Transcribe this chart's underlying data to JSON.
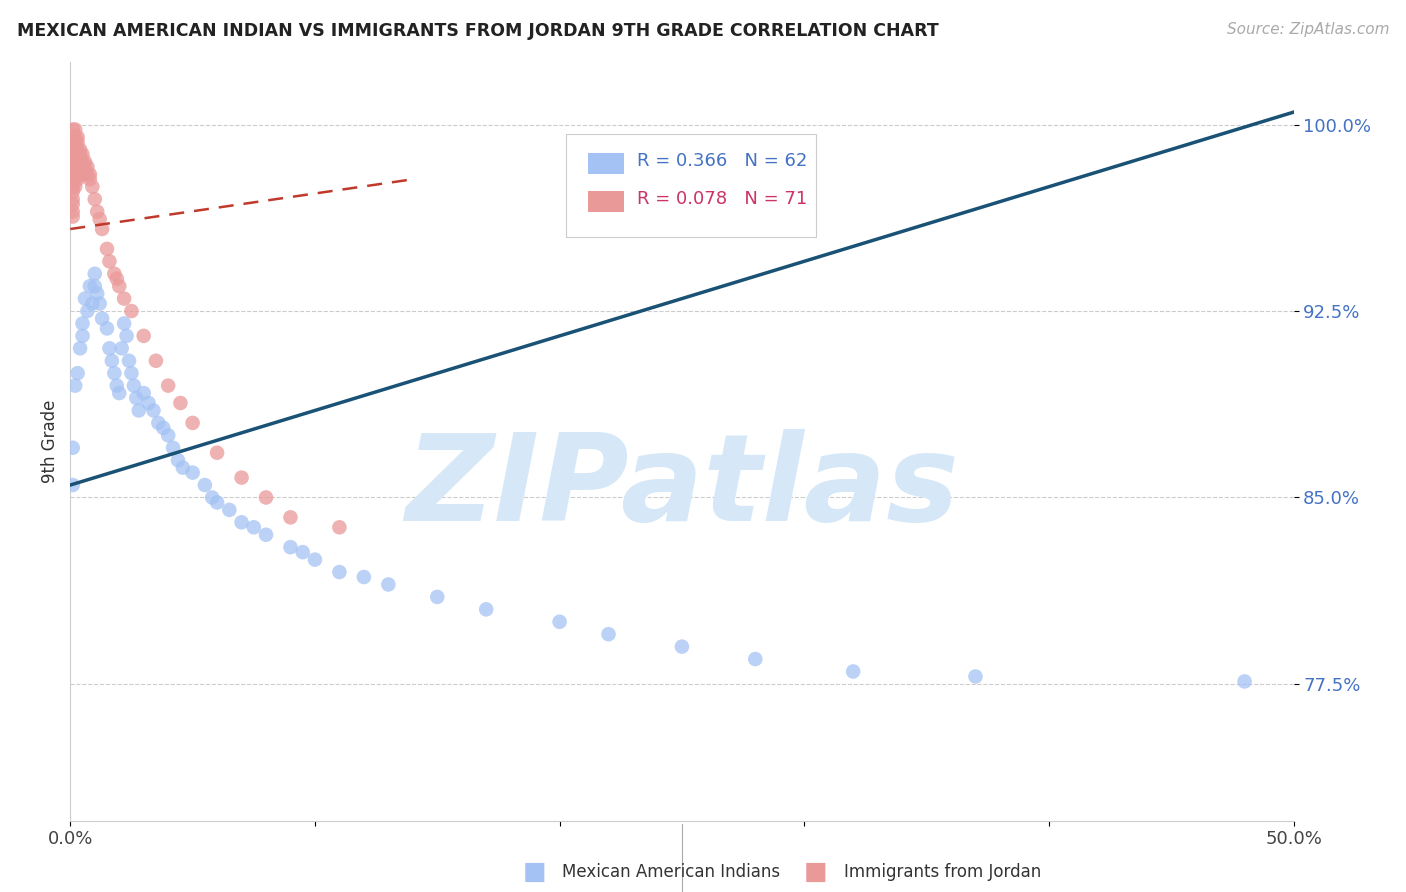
{
  "title": "MEXICAN AMERICAN INDIAN VS IMMIGRANTS FROM JORDAN 9TH GRADE CORRELATION CHART",
  "source": "Source: ZipAtlas.com",
  "ylabel": "9th Grade",
  "yticks": [
    0.775,
    0.85,
    0.925,
    1.0
  ],
  "ytick_labels": [
    "77.5%",
    "85.0%",
    "92.5%",
    "100.0%"
  ],
  "xlim": [
    0.0,
    0.5
  ],
  "ylim": [
    0.72,
    1.025
  ],
  "legend_blue_r": "R = 0.366",
  "legend_blue_n": "N = 62",
  "legend_pink_r": "R = 0.078",
  "legend_pink_n": "N = 71",
  "legend_label_blue": "Mexican American Indians",
  "legend_label_pink": "Immigrants from Jordan",
  "blue_color": "#a4c2f4",
  "blue_line_color": "#1a5276",
  "pink_color": "#ea9999",
  "pink_line_color": "#c0392b",
  "watermark": "ZIPatlas",
  "watermark_color": "#d6e8f7",
  "blue_dots_x": [
    0.001,
    0.001,
    0.002,
    0.003,
    0.004,
    0.005,
    0.005,
    0.006,
    0.007,
    0.008,
    0.009,
    0.01,
    0.01,
    0.011,
    0.012,
    0.013,
    0.015,
    0.016,
    0.017,
    0.018,
    0.019,
    0.02,
    0.021,
    0.022,
    0.023,
    0.024,
    0.025,
    0.026,
    0.027,
    0.028,
    0.03,
    0.032,
    0.034,
    0.036,
    0.038,
    0.04,
    0.042,
    0.044,
    0.046,
    0.05,
    0.055,
    0.058,
    0.06,
    0.065,
    0.07,
    0.075,
    0.08,
    0.09,
    0.095,
    0.1,
    0.11,
    0.12,
    0.13,
    0.15,
    0.17,
    0.2,
    0.22,
    0.25,
    0.28,
    0.32,
    0.37,
    0.48
  ],
  "blue_dots_y": [
    0.87,
    0.855,
    0.895,
    0.9,
    0.91,
    0.92,
    0.915,
    0.93,
    0.925,
    0.935,
    0.928,
    0.94,
    0.935,
    0.932,
    0.928,
    0.922,
    0.918,
    0.91,
    0.905,
    0.9,
    0.895,
    0.892,
    0.91,
    0.92,
    0.915,
    0.905,
    0.9,
    0.895,
    0.89,
    0.885,
    0.892,
    0.888,
    0.885,
    0.88,
    0.878,
    0.875,
    0.87,
    0.865,
    0.862,
    0.86,
    0.855,
    0.85,
    0.848,
    0.845,
    0.84,
    0.838,
    0.835,
    0.83,
    0.828,
    0.825,
    0.82,
    0.818,
    0.815,
    0.81,
    0.805,
    0.8,
    0.795,
    0.79,
    0.785,
    0.78,
    0.778,
    0.776
  ],
  "pink_dots_x": [
    0.001,
    0.001,
    0.001,
    0.001,
    0.001,
    0.001,
    0.001,
    0.001,
    0.001,
    0.001,
    0.001,
    0.001,
    0.001,
    0.001,
    0.001,
    0.002,
    0.002,
    0.002,
    0.002,
    0.002,
    0.002,
    0.002,
    0.002,
    0.002,
    0.002,
    0.003,
    0.003,
    0.003,
    0.003,
    0.003,
    0.003,
    0.003,
    0.003,
    0.004,
    0.004,
    0.004,
    0.004,
    0.004,
    0.005,
    0.005,
    0.005,
    0.005,
    0.006,
    0.006,
    0.006,
    0.007,
    0.007,
    0.008,
    0.008,
    0.009,
    0.01,
    0.011,
    0.012,
    0.013,
    0.015,
    0.016,
    0.018,
    0.019,
    0.02,
    0.022,
    0.025,
    0.03,
    0.035,
    0.04,
    0.045,
    0.05,
    0.06,
    0.07,
    0.08,
    0.09,
    0.11
  ],
  "pink_dots_y": [
    0.998,
    0.995,
    0.993,
    0.99,
    0.988,
    0.985,
    0.983,
    0.98,
    0.978,
    0.975,
    0.973,
    0.97,
    0.968,
    0.965,
    0.963,
    0.998,
    0.995,
    0.993,
    0.99,
    0.988,
    0.985,
    0.983,
    0.98,
    0.978,
    0.975,
    0.995,
    0.993,
    0.99,
    0.988,
    0.985,
    0.983,
    0.98,
    0.978,
    0.99,
    0.988,
    0.985,
    0.983,
    0.98,
    0.988,
    0.985,
    0.983,
    0.98,
    0.985,
    0.983,
    0.98,
    0.983,
    0.98,
    0.98,
    0.978,
    0.975,
    0.97,
    0.965,
    0.962,
    0.958,
    0.95,
    0.945,
    0.94,
    0.938,
    0.935,
    0.93,
    0.925,
    0.915,
    0.905,
    0.895,
    0.888,
    0.88,
    0.868,
    0.858,
    0.85,
    0.842,
    0.838
  ],
  "blue_line_x": [
    0.0,
    0.5
  ],
  "blue_line_y": [
    0.855,
    1.005
  ],
  "pink_line_x": [
    0.0,
    0.14
  ],
  "pink_line_y": [
    0.958,
    0.978
  ]
}
